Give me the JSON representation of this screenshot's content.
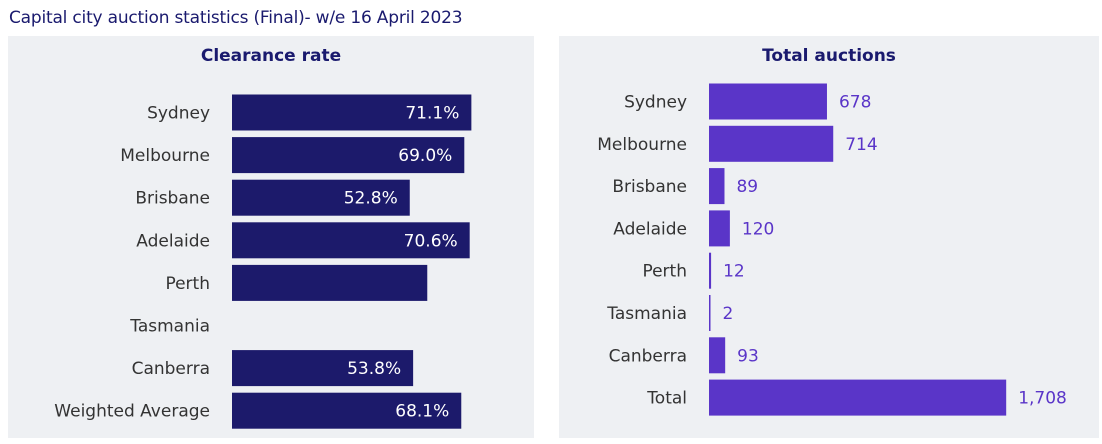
{
  "title": "Capital city auction statistics (Final)- w/e 16 April 2023",
  "colors": {
    "clearance_bar": "#1c1a6b",
    "auctions_bar": "#5a35c8",
    "title": "#1a1a6e",
    "panel_bg": "#eef0f3"
  },
  "chart_data": [
    {
      "type": "bar",
      "orientation": "horizontal",
      "title": "Clearance rate",
      "categories": [
        "Sydney",
        "Melbourne",
        "Brisbane",
        "Adelaide",
        "Perth",
        "Tasmania",
        "Canberra",
        "Weighted Average"
      ],
      "values": [
        71.1,
        69.0,
        52.8,
        70.6,
        58.0,
        null,
        53.8,
        68.1
      ],
      "labels": [
        "71.1%",
        "69.0%",
        "52.8%",
        "70.6%",
        "",
        "",
        "53.8%",
        "68.1%"
      ],
      "unit": "%",
      "xlim": [
        0,
        90
      ],
      "grid": false,
      "legend": "none"
    },
    {
      "type": "bar",
      "orientation": "horizontal",
      "title": "Total auctions",
      "categories": [
        "Sydney",
        "Melbourne",
        "Brisbane",
        "Adelaide",
        "Perth",
        "Tasmania",
        "Canberra",
        "Total"
      ],
      "values": [
        678,
        714,
        89,
        120,
        12,
        2,
        93,
        1708
      ],
      "labels": [
        "678",
        "714",
        "89",
        "120",
        "12",
        "2",
        "93",
        "1,708"
      ],
      "xlim": [
        0,
        2000
      ],
      "grid": false,
      "legend": "none"
    }
  ]
}
